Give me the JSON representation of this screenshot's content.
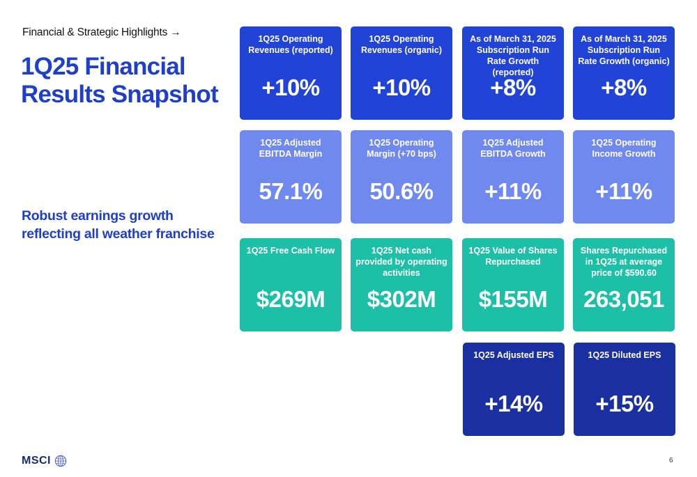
{
  "header": {
    "breadcrumb": "Financial & Strategic Highlights →",
    "title": "1Q25 Financial Results Snapshot",
    "subtitle": "Robust earnings growth reflecting all weather franchise"
  },
  "colors": {
    "title_blue": "#1f3fc9",
    "tile_royal_blue": "#2143d6",
    "tile_periwinkle": "#6f89ee",
    "tile_teal": "#1dbfa7",
    "tile_navy": "#1a30a0"
  },
  "tiles": [
    {
      "label": "1Q25 Operating Revenues (reported)",
      "value": "+10%"
    },
    {
      "label": "1Q25 Operating Revenues (organic)",
      "value": "+10%"
    },
    {
      "label": "As of March 31, 2025 Subscription Run Rate Growth (reported)",
      "value": "+8%"
    },
    {
      "label": "As of March 31, 2025 Subscription Run Rate Growth (organic)",
      "value": "+8%"
    },
    {
      "label": "1Q25 Adjusted EBITDA Margin",
      "value": "57.1%"
    },
    {
      "label": "1Q25 Operating Margin (+70 bps)",
      "value": "50.6%"
    },
    {
      "label": "1Q25 Adjusted EBITDA Growth",
      "value": "+11%"
    },
    {
      "label": "1Q25 Operating Income Growth",
      "value": "+11%"
    },
    {
      "label": "1Q25 Free Cash Flow",
      "value": "$269M"
    },
    {
      "label": "1Q25 Net cash provided by operating activities",
      "value": "$302M"
    },
    {
      "label": "1Q25 Value of Shares Repurchased",
      "value": "$155M"
    },
    {
      "label": "Shares Repurchased in 1Q25 at average price of $590.60",
      "value": "263,051"
    },
    {
      "label": "1Q25 Adjusted EPS",
      "value": "+14%"
    },
    {
      "label": "1Q25 Diluted EPS",
      "value": "+15%"
    }
  ],
  "footer": {
    "logo_text": "MSCI",
    "logo_icon": "globe-icon",
    "page_number": "6"
  }
}
